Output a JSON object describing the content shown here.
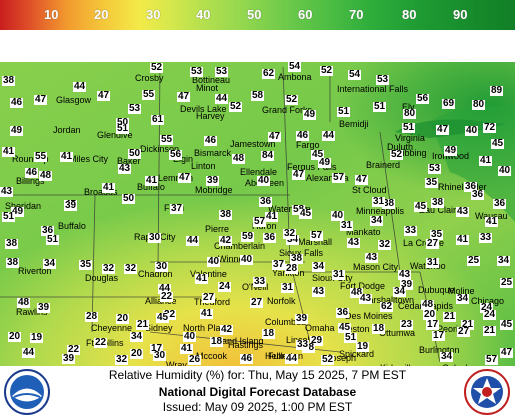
{
  "legend": {
    "labels": [
      "10",
      "20",
      "30",
      "40",
      "50",
      "60",
      "70",
      "80",
      "90"
    ]
  },
  "footer": {
    "line1": "Relative Humidity (%) for: Thu, May 15 2025, 7 PM EST",
    "line2": "National Digital Forecast Database",
    "line3": "Issued: May 09 2025, 1:00 PM EST"
  },
  "logos": {
    "left": "noaa-logo",
    "right": "nws-logo"
  },
  "cities": [
    "Crosby",
    "Bottineau",
    "Ambona",
    "International Falls",
    "Glasgow",
    "Minot",
    "Devils Lake",
    "Ely",
    "Harvey",
    "Grand Forks",
    "Bemidji",
    "Virginia",
    "Jordan",
    "Glendive",
    "Hibbing",
    "Duluth",
    "Dickinson",
    "Bismarck",
    "Jamestown",
    "Fargo",
    "Ironwood",
    "Roundup",
    "Miles City",
    "Baker",
    "Elgin",
    "Linton",
    "Fergus Falls",
    "Brainerd",
    "Billings",
    "Lemmon",
    "Ellendale",
    "Alexandria",
    "St Cloud",
    "Rhinelander",
    "Broadus",
    "Buffalo",
    "Mobridge",
    "Aberdeen",
    "Sheridan",
    "Faith",
    "Watertown",
    "Minneapolis",
    "Eau Claire",
    "Buffalo",
    "Rapid City",
    "Pierre",
    "Huron",
    "Marshall",
    "Mankato",
    "Wausau",
    "La Crosse",
    "Riverton",
    "Chamberlain",
    "Winner",
    "Sioux Falls",
    "Mason City",
    "Douglas",
    "Chadron",
    "Valentine",
    "Yankton",
    "Sioux City",
    "Fort Dodge",
    "Waterloo",
    "Dubuque",
    "Rawlins",
    "Alliance",
    "Thedford",
    "O'Neill",
    "Norfolk",
    "Marshalltown",
    "Des Moines",
    "Cedar Rapids",
    "Moline",
    "Chicago",
    "Cheyenne",
    "Sidney",
    "North Platte",
    "Columbus",
    "Omaha",
    "Creston",
    "Ottumwa",
    "Peoria",
    "Ft Collins",
    "Grand Island",
    "Lincoln",
    "Hastings",
    "Burlington",
    "Fullerton",
    "Hebron",
    "Joseph",
    "Spickard",
    "Mccook",
    "Wray",
    "Kirksville",
    "Galesburg"
  ],
  "values": [
    52,
    53,
    53,
    62,
    54,
    52,
    54,
    53,
    38,
    44,
    47,
    55,
    47,
    52,
    56,
    69,
    80,
    89,
    46,
    47,
    53,
    58,
    44,
    52,
    51,
    49,
    61,
    50,
    51,
    80,
    72,
    49,
    51,
    51,
    55,
    46,
    47,
    46,
    44,
    47,
    40,
    41,
    41,
    55,
    56,
    50,
    48,
    49,
    45,
    45,
    41,
    46,
    47,
    49,
    84,
    47,
    57,
    52,
    53,
    40,
    43,
    48,
    41,
    43,
    39,
    40,
    47,
    35,
    36,
    41,
    50,
    47,
    37,
    58,
    36,
    49,
    39,
    51,
    38,
    38,
    36,
    36,
    38,
    41,
    45,
    57,
    40,
    34,
    45,
    43,
    36,
    38,
    51,
    30,
    44,
    42,
    59,
    57,
    36,
    31,
    33,
    35,
    41,
    38,
    38,
    43,
    43,
    41,
    34,
    35,
    32,
    32,
    30,
    40,
    40,
    37,
    34,
    32,
    31,
    32,
    27,
    33,
    34,
    48,
    44,
    41,
    24,
    33,
    28,
    34,
    31,
    43,
    31,
    25,
    25,
    39,
    28,
    22,
    27,
    27,
    31,
    43,
    48,
    48,
    34,
    24,
    22,
    20,
    21,
    45,
    41,
    39,
    36,
    39,
    20,
    21,
    24,
    20,
    19,
    22,
    34,
    40,
    42,
    29,
    18,
    17,
    21,
    41,
    44,
    22,
    20,
    17,
    18,
    18,
    18,
    19,
    23,
    17,
    27,
    21,
    33,
    45,
    51,
    43,
    45,
    47,
    57,
    62,
    34,
    34,
    52,
    44,
    46,
    26,
    30,
    32,
    39,
    30,
    48,
    36,
    18,
    18,
    18,
    19,
    20,
    19
  ]
}
